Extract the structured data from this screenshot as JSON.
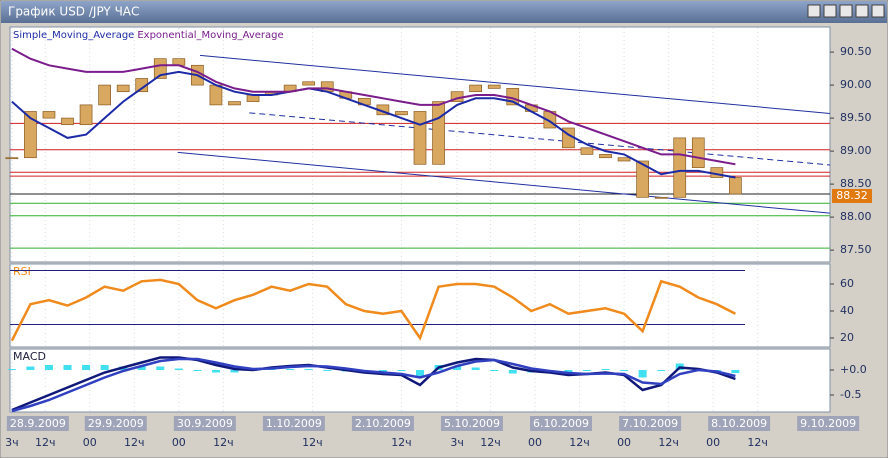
{
  "window_title": "График USD /JPY  ЧАС",
  "x": [
    0,
    5,
    10,
    15,
    20,
    25,
    30,
    35,
    40,
    45,
    50,
    55,
    60,
    65,
    70,
    75,
    80,
    85,
    90,
    95,
    100,
    105,
    110,
    115,
    120,
    125,
    130,
    135,
    140,
    145,
    150,
    155,
    160,
    165,
    170,
    175,
    180,
    185,
    190,
    195
  ],
  "xlim": [
    -0.5,
    220.5
  ],
  "date_labels": [
    {
      "value": 0,
      "label": "28.9.2009"
    },
    {
      "value": 21,
      "label": "29.9.2009"
    },
    {
      "value": 45,
      "label": "30.9.2009"
    },
    {
      "value": 69,
      "label": "1.10.2009"
    },
    {
      "value": 93,
      "label": "2.10.2009"
    },
    {
      "value": 117,
      "label": "5.10.2009"
    },
    {
      "value": 141,
      "label": "6.10.2009"
    },
    {
      "value": 165,
      "label": "7.10.2009"
    },
    {
      "value": 189,
      "label": "8.10.2009"
    },
    {
      "value": 213,
      "label": "9.10.2009"
    }
  ],
  "hour_labels": [
    {
      "value": 0,
      "label": "3ч"
    },
    {
      "value": 9,
      "label": "12ч"
    },
    {
      "value": 21,
      "label": "00"
    },
    {
      "value": 33,
      "label": "12ч"
    },
    {
      "value": 45,
      "label": "00"
    },
    {
      "value": 57,
      "label": "12ч"
    },
    {
      "value": 81,
      "label": "12ч"
    },
    {
      "value": 105,
      "label": "12ч"
    },
    {
      "value": 120,
      "label": "3ч"
    },
    {
      "value": 129,
      "label": "12ч"
    },
    {
      "value": 141,
      "label": "00"
    },
    {
      "value": 153,
      "label": "12ч"
    },
    {
      "value": 165,
      "label": "00"
    },
    {
      "value": 177,
      "label": "12ч"
    },
    {
      "value": 189,
      "label": "00"
    },
    {
      "value": 201,
      "label": "12ч"
    }
  ],
  "chart_data": [
    {
      "type": "candlestick",
      "ylim": [
        87.32,
        90.88
      ],
      "yticks": [
        {
          "value": 87.5,
          "label": "87.50"
        },
        {
          "value": 88.0,
          "label": "88.00"
        },
        {
          "value": 88.5,
          "label": "88.50"
        },
        {
          "value": 89.0,
          "label": "89.00"
        },
        {
          "value": 89.5,
          "label": "89.50"
        },
        {
          "value": 90.0,
          "label": "90.00"
        },
        {
          "value": 90.5,
          "label": "90.50"
        }
      ],
      "close": [
        88.9,
        89.6,
        89.5,
        89.4,
        89.7,
        90.0,
        89.9,
        90.1,
        90.4,
        90.3,
        90.0,
        89.7,
        89.75,
        89.85,
        89.9,
        90.0,
        90.05,
        89.9,
        89.8,
        89.7,
        89.55,
        89.6,
        88.8,
        89.75,
        89.9,
        90.0,
        89.95,
        89.7,
        89.6,
        89.35,
        89.05,
        88.95,
        88.9,
        88.85,
        88.3,
        88.3,
        89.2,
        88.75,
        88.6,
        88.35
      ],
      "candle_color": "#d8a860",
      "series": [
        {
          "name": "Simple_Moving_Average",
          "color": "#1c2aa8",
          "values": [
            89.75,
            89.5,
            89.35,
            89.2,
            89.25,
            89.5,
            89.75,
            89.95,
            90.15,
            90.2,
            90.15,
            90.0,
            89.9,
            89.85,
            89.85,
            89.9,
            89.95,
            89.9,
            89.8,
            89.7,
            89.6,
            89.5,
            89.4,
            89.5,
            89.7,
            89.8,
            89.8,
            89.75,
            89.6,
            89.45,
            89.25,
            89.1,
            89.0,
            88.95,
            88.8,
            88.65,
            88.7,
            88.7,
            88.65,
            88.6
          ]
        },
        {
          "name": "Exponential_Moving_Average",
          "color": "#7a1c8c",
          "values": [
            90.55,
            90.4,
            90.3,
            90.25,
            90.2,
            90.2,
            90.2,
            90.25,
            90.3,
            90.3,
            90.2,
            90.05,
            89.95,
            89.9,
            89.9,
            89.9,
            89.95,
            89.95,
            89.9,
            89.85,
            89.8,
            89.75,
            89.7,
            89.7,
            89.8,
            89.85,
            89.85,
            89.8,
            89.7,
            89.6,
            89.45,
            89.35,
            89.25,
            89.15,
            89.05,
            88.95,
            88.95,
            88.9,
            88.85,
            88.8
          ]
        }
      ],
      "hlines": [
        {
          "value": 89.42,
          "color": "#d02020"
        },
        {
          "value": 89.02,
          "color": "#d02020"
        },
        {
          "value": 88.68,
          "color": "#d02020"
        },
        {
          "value": 88.62,
          "color": "#d02020"
        },
        {
          "value": 88.35,
          "color": "#202020"
        },
        {
          "value": 88.21,
          "color": "#30b030"
        },
        {
          "value": 88.02,
          "color": "#30b030"
        },
        {
          "value": 87.53,
          "color": "#30b030"
        }
      ],
      "trendlines": [
        {
          "x": [
            50.7,
            220.5
          ],
          "y": [
            90.45,
            89.57
          ],
          "color": "#2030a0",
          "dashed": false
        },
        {
          "x": [
            44.7,
            220.5
          ],
          "y": [
            88.98,
            88.06
          ],
          "color": "#2030a0",
          "dashed": false
        },
        {
          "x": [
            64,
            220.5
          ],
          "y": [
            89.58,
            88.79
          ],
          "color": "#2030a0",
          "dashed": true
        }
      ],
      "last_price": 88.32
    },
    {
      "type": "line",
      "title": "RSI",
      "ylim": [
        13.3,
        74.8
      ],
      "yticks": [
        20,
        40,
        60
      ],
      "levels": [
        70,
        30
      ],
      "series": [
        {
          "name": "RSI",
          "color": "#f08a1c",
          "values": [
            18,
            45,
            48,
            44,
            50,
            58,
            55,
            62,
            63,
            60,
            48,
            42,
            48,
            52,
            58,
            55,
            60,
            58,
            45,
            40,
            38,
            40,
            20,
            58,
            60,
            60,
            58,
            50,
            40,
            45,
            38,
            40,
            42,
            38,
            25,
            62,
            58,
            50,
            45,
            38
          ]
        }
      ]
    },
    {
      "type": "macd",
      "title": "MACD",
      "ylim": [
        -0.84,
        0.42
      ],
      "yticks": [
        {
          "value": 0,
          "label": "+0.0"
        },
        -0.5
      ],
      "histogram": {
        "color": "#40e0f0",
        "values": [
          0.02,
          0.07,
          0.1,
          0.1,
          0.1,
          0.1,
          0.07,
          0.07,
          0.07,
          0.03,
          -0.02,
          -0.05,
          -0.05,
          -0.02,
          0.02,
          0.02,
          0.02,
          -0.02,
          -0.03,
          -0.03,
          -0.03,
          -0.02,
          -0.15,
          0.1,
          0.07,
          0.05,
          0.0,
          -0.07,
          -0.05,
          -0.03,
          -0.04,
          0.0,
          0.02,
          -0.02,
          -0.15,
          -0.02,
          0.13,
          0.02,
          -0.02,
          -0.06
        ]
      },
      "series": [
        {
          "color": "#10187a",
          "values": [
            -0.8,
            -0.65,
            -0.5,
            -0.35,
            -0.2,
            -0.05,
            0.05,
            0.15,
            0.25,
            0.25,
            0.2,
            0.1,
            0.02,
            0.0,
            0.05,
            0.08,
            0.1,
            0.05,
            0.0,
            -0.05,
            -0.08,
            -0.1,
            -0.3,
            0.05,
            0.15,
            0.22,
            0.2,
            0.05,
            -0.02,
            -0.05,
            -0.1,
            -0.08,
            -0.05,
            -0.1,
            -0.4,
            -0.3,
            0.05,
            0.02,
            -0.05,
            -0.18
          ]
        },
        {
          "color": "#3040c0",
          "values": [
            -0.82,
            -0.72,
            -0.6,
            -0.45,
            -0.3,
            -0.15,
            -0.02,
            0.08,
            0.18,
            0.22,
            0.22,
            0.15,
            0.07,
            0.02,
            0.03,
            0.06,
            0.08,
            0.07,
            0.03,
            -0.02,
            -0.05,
            -0.08,
            -0.15,
            -0.05,
            0.08,
            0.17,
            0.2,
            0.12,
            0.03,
            -0.02,
            -0.06,
            -0.08,
            -0.07,
            -0.08,
            -0.25,
            -0.28,
            -0.08,
            0.0,
            -0.03,
            -0.12
          ]
        }
      ]
    }
  ]
}
